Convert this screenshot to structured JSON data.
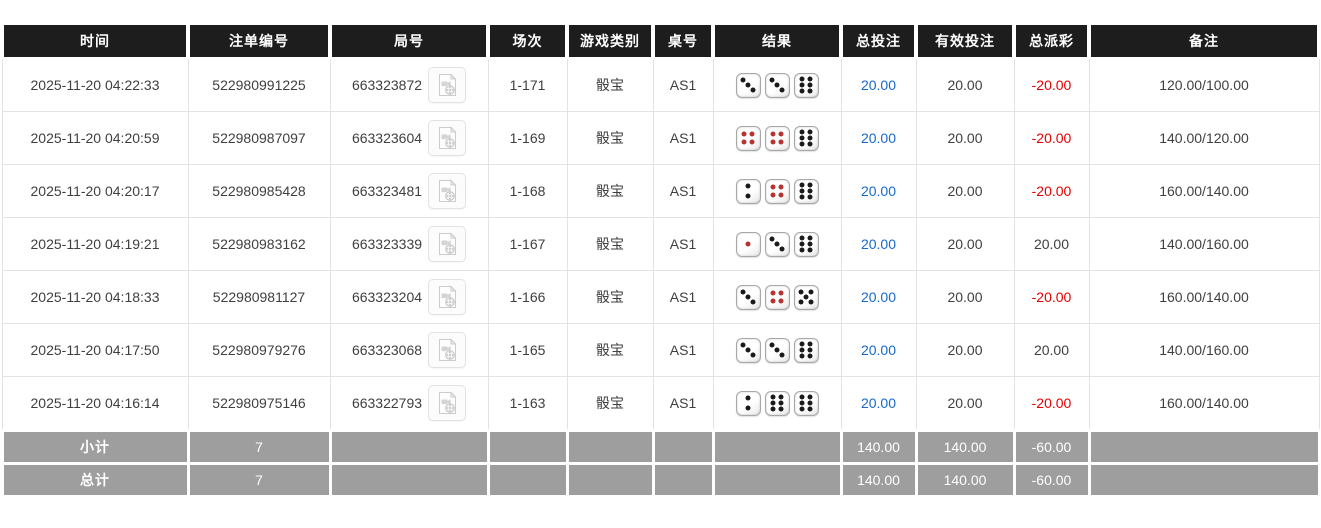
{
  "table": {
    "columns": [
      {
        "key": "time",
        "label": "时间"
      },
      {
        "key": "bet_id",
        "label": "注单编号"
      },
      {
        "key": "round",
        "label": "局号"
      },
      {
        "key": "session",
        "label": "场次"
      },
      {
        "key": "game_type",
        "label": "游戏类别"
      },
      {
        "key": "table_no",
        "label": "桌号"
      },
      {
        "key": "result",
        "label": "结果"
      },
      {
        "key": "total_bet",
        "label": "总投注"
      },
      {
        "key": "valid_bet",
        "label": "有效投注"
      },
      {
        "key": "total_payout",
        "label": "总派彩"
      },
      {
        "key": "remark",
        "label": "备注"
      }
    ],
    "rows": [
      {
        "time": "2025-11-20 04:22:33",
        "bet_id": "522980991225",
        "round": "663323872",
        "session": "1-171",
        "game_type": "骰宝",
        "table_no": "AS1",
        "dice": [
          3,
          3,
          6
        ],
        "total_bet": "20.00",
        "valid_bet": "20.00",
        "total_payout": "-20.00",
        "remark": "120.00/100.00"
      },
      {
        "time": "2025-11-20 04:20:59",
        "bet_id": "522980987097",
        "round": "663323604",
        "session": "1-169",
        "game_type": "骰宝",
        "table_no": "AS1",
        "dice": [
          4,
          4,
          6
        ],
        "total_bet": "20.00",
        "valid_bet": "20.00",
        "total_payout": "-20.00",
        "remark": "140.00/120.00"
      },
      {
        "time": "2025-11-20 04:20:17",
        "bet_id": "522980985428",
        "round": "663323481",
        "session": "1-168",
        "game_type": "骰宝",
        "table_no": "AS1",
        "dice": [
          2,
          4,
          6
        ],
        "total_bet": "20.00",
        "valid_bet": "20.00",
        "total_payout": "-20.00",
        "remark": "160.00/140.00"
      },
      {
        "time": "2025-11-20 04:19:21",
        "bet_id": "522980983162",
        "round": "663323339",
        "session": "1-167",
        "game_type": "骰宝",
        "table_no": "AS1",
        "dice": [
          1,
          3,
          6
        ],
        "total_bet": "20.00",
        "valid_bet": "20.00",
        "total_payout": "20.00",
        "remark": "140.00/160.00"
      },
      {
        "time": "2025-11-20 04:18:33",
        "bet_id": "522980981127",
        "round": "663323204",
        "session": "1-166",
        "game_type": "骰宝",
        "table_no": "AS1",
        "dice": [
          3,
          4,
          5
        ],
        "total_bet": "20.00",
        "valid_bet": "20.00",
        "total_payout": "-20.00",
        "remark": "160.00/140.00"
      },
      {
        "time": "2025-11-20 04:17:50",
        "bet_id": "522980979276",
        "round": "663323068",
        "session": "1-165",
        "game_type": "骰宝",
        "table_no": "AS1",
        "dice": [
          3,
          3,
          6
        ],
        "total_bet": "20.00",
        "valid_bet": "20.00",
        "total_payout": "20.00",
        "remark": "140.00/160.00"
      },
      {
        "time": "2025-11-20 04:16:14",
        "bet_id": "522980975146",
        "round": "663322793",
        "session": "1-163",
        "game_type": "骰宝",
        "table_no": "AS1",
        "dice": [
          2,
          6,
          6
        ],
        "total_bet": "20.00",
        "valid_bet": "20.00",
        "total_payout": "-20.00",
        "remark": "160.00/140.00"
      }
    ],
    "footer_rows": [
      {
        "label": "小计",
        "count": "7",
        "total_bet": "140.00",
        "valid_bet": "140.00",
        "total_payout": "-60.00",
        "remark": ""
      },
      {
        "label": "总计",
        "count": "7",
        "total_bet": "140.00",
        "valid_bet": "140.00",
        "total_payout": "-60.00",
        "remark": ""
      }
    ]
  },
  "icons": {
    "round_video": "video-file-icon"
  },
  "colors": {
    "header_bg": "#1d1d1d",
    "footer_bg": "#9e9e9e",
    "bet_amount_blue": "#1769c9",
    "negative_red": "#e50000",
    "dice_pip_black": "#1a1a1a",
    "dice_pip_red": "#b83232"
  }
}
